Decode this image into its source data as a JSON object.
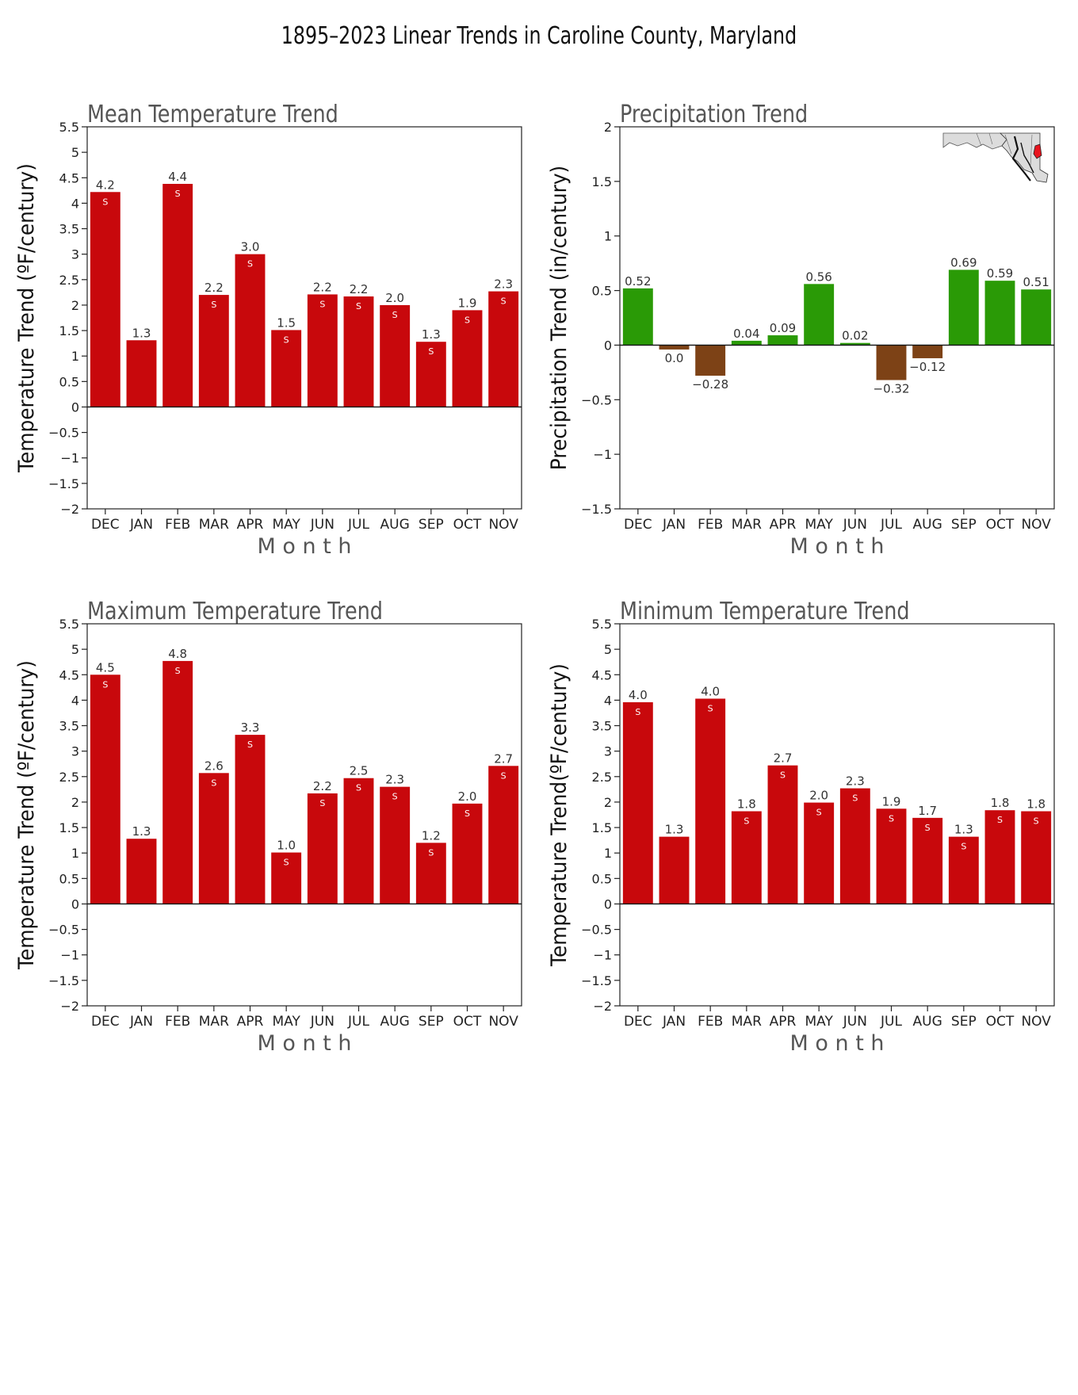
{
  "title": "1895–2023 Linear Trends in Caroline County, Maryland",
  "chart_data": [
    {
      "type": "bar",
      "id": "mean",
      "title": "Mean Temperature Trend",
      "ylabel": "Temperature Trend (ºF/century)",
      "xlabel": "M o n t h",
      "ylim": [
        -2,
        5.5
      ],
      "yticks": [
        "-2",
        "-1.5",
        "-1",
        "-0.5",
        "0",
        "0.5",
        "1",
        "1.5",
        "2",
        "2.5",
        "3",
        "3.5",
        "4",
        "4.5",
        "5",
        "5.5"
      ],
      "categories": [
        "DEC",
        "JAN",
        "FEB",
        "MAR",
        "APR",
        "MAY",
        "JUN",
        "JUL",
        "AUG",
        "SEP",
        "OCT",
        "NOV"
      ],
      "values": [
        4.22,
        1.31,
        4.38,
        2.2,
        3.0,
        1.51,
        2.21,
        2.17,
        2.0,
        1.28,
        1.9,
        2.27
      ],
      "labels": [
        "4.2",
        "1.3",
        "4.4",
        "2.2",
        "3.0",
        "1.5",
        "2.2",
        "2.2",
        "2.0",
        "1.3",
        "1.9",
        "2.3"
      ],
      "significant": [
        true,
        false,
        true,
        true,
        true,
        true,
        true,
        true,
        true,
        true,
        true,
        true
      ],
      "sig_marker": "S",
      "pos_color": "#c8080c",
      "neg_color": "#c8080c",
      "label_neg_text_as": null
    },
    {
      "type": "bar",
      "id": "precip",
      "title": "Precipitation Trend",
      "ylabel": "Precipitation Trend (in/century)",
      "xlabel": "M o n t h",
      "ylim": [
        -1.5,
        2
      ],
      "yticks": [
        "-1.5",
        "-1",
        "-0.5",
        "0",
        "0.5",
        "1",
        "1.5",
        "2"
      ],
      "categories": [
        "DEC",
        "JAN",
        "FEB",
        "MAR",
        "APR",
        "MAY",
        "JUN",
        "JUL",
        "AUG",
        "SEP",
        "OCT",
        "NOV"
      ],
      "values": [
        0.52,
        -0.04,
        -0.28,
        0.04,
        0.09,
        0.56,
        0.02,
        -0.32,
        -0.12,
        0.69,
        0.59,
        0.51
      ],
      "labels": [
        "0.52",
        "0.0",
        "−0.28",
        "0.04",
        "0.09",
        "0.56",
        "0.02",
        "−0.32",
        "−0.12",
        "0.69",
        "0.59",
        "0.51"
      ],
      "significant": [
        false,
        false,
        false,
        false,
        false,
        false,
        false,
        false,
        false,
        false,
        false,
        false
      ],
      "sig_marker": "S",
      "pos_color": "#2a9a06",
      "neg_color": "#7d4216"
    },
    {
      "type": "bar",
      "id": "max",
      "title": "Maximum Temperature Trend",
      "ylabel": "Temperature Trend (ºF/century)",
      "xlabel": "M o n t h",
      "ylim": [
        -2,
        5.5
      ],
      "yticks": [
        "-2",
        "-1.5",
        "-1",
        "-0.5",
        "0",
        "0.5",
        "1",
        "1.5",
        "2",
        "2.5",
        "3",
        "3.5",
        "4",
        "4.5",
        "5",
        "5.5"
      ],
      "categories": [
        "DEC",
        "JAN",
        "FEB",
        "MAR",
        "APR",
        "MAY",
        "JUN",
        "JUL",
        "AUG",
        "SEP",
        "OCT",
        "NOV"
      ],
      "values": [
        4.5,
        1.28,
        4.77,
        2.57,
        3.32,
        1.01,
        2.17,
        2.47,
        2.3,
        1.2,
        1.97,
        2.71
      ],
      "labels": [
        "4.5",
        "1.3",
        "4.8",
        "2.6",
        "3.3",
        "1.0",
        "2.2",
        "2.5",
        "2.3",
        "1.2",
        "2.0",
        "2.7"
      ],
      "significant": [
        true,
        false,
        true,
        true,
        true,
        true,
        true,
        true,
        true,
        true,
        true,
        true
      ],
      "sig_marker": "S",
      "pos_color": "#c8080c",
      "neg_color": "#c8080c"
    },
    {
      "type": "bar",
      "id": "min",
      "title": "Minimum Temperature Trend",
      "ylabel": "Temperature Trend(ºF/century)",
      "xlabel": "M o n t h",
      "ylim": [
        -2,
        5.5
      ],
      "yticks": [
        "-2",
        "-1.5",
        "-1",
        "-0.5",
        "0",
        "0.5",
        "1",
        "1.5",
        "2",
        "2.5",
        "3",
        "3.5",
        "4",
        "4.5",
        "5",
        "5.5"
      ],
      "categories": [
        "DEC",
        "JAN",
        "FEB",
        "MAR",
        "APR",
        "MAY",
        "JUN",
        "JUL",
        "AUG",
        "SEP",
        "OCT",
        "NOV"
      ],
      "values": [
        3.96,
        1.32,
        4.03,
        1.82,
        2.72,
        1.99,
        2.27,
        1.87,
        1.69,
        1.32,
        1.84,
        1.82
      ],
      "labels": [
        "4.0",
        "1.3",
        "4.0",
        "1.8",
        "2.7",
        "2.0",
        "2.3",
        "1.9",
        "1.7",
        "1.3",
        "1.8",
        "1.8"
      ],
      "significant": [
        true,
        false,
        true,
        true,
        true,
        true,
        true,
        true,
        true,
        true,
        true,
        true
      ],
      "sig_marker": "S",
      "pos_color": "#c8080c",
      "neg_color": "#c8080c"
    }
  ],
  "inset_map": {
    "name": "maryland-locator-map",
    "state_color": "#dcdcdc",
    "highlight_color": "#e8141e"
  }
}
